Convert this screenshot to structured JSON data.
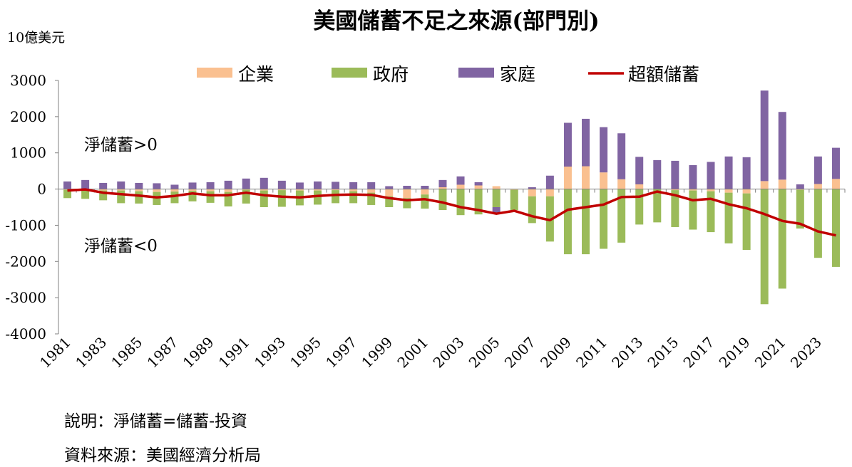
{
  "chart_data": {
    "type": "bar",
    "title": "美國儲蓄不足之來源(部門別)",
    "ylabel": "10億美元",
    "xlabel": "",
    "ylim": [
      -4000,
      3000
    ],
    "yticks": [
      3000,
      2000,
      1000,
      0,
      -1000,
      -2000,
      -3000,
      -4000
    ],
    "xtick_labels": [
      "1981",
      "1983",
      "1985",
      "1987",
      "1989",
      "1991",
      "1993",
      "1995",
      "1997",
      "1999",
      "2001",
      "2003",
      "2005",
      "2007",
      "2009",
      "2011",
      "2013",
      "2015",
      "2017",
      "2019",
      "2021",
      "2023"
    ],
    "categories": [
      "1981",
      "1982",
      "1983",
      "1984",
      "1985",
      "1986",
      "1987",
      "1988",
      "1989",
      "1990",
      "1991",
      "1992",
      "1993",
      "1994",
      "1995",
      "1996",
      "1997",
      "1998",
      "1999",
      "2000",
      "2001",
      "2002",
      "2003",
      "2004",
      "2005",
      "2006",
      "2007",
      "2008",
      "2009",
      "2010",
      "2011",
      "2012",
      "2013",
      "2014",
      "2015",
      "2016",
      "2017",
      "2018",
      "2019",
      "2020",
      "2021",
      "2022",
      "2023",
      "2024"
    ],
    "legend_position": "top",
    "series": [
      {
        "name": "企業",
        "kind": "bar",
        "color": "#FAC090",
        "values": [
          -20,
          -30,
          -40,
          -40,
          -60,
          -80,
          -70,
          -50,
          -60,
          -80,
          -20,
          -40,
          -30,
          -40,
          -40,
          -30,
          -60,
          -100,
          -200,
          -250,
          -150,
          50,
          120,
          100,
          80,
          -20,
          -200,
          -200,
          620,
          630,
          460,
          270,
          130,
          0,
          -30,
          -40,
          -60,
          -100,
          -120,
          220,
          260,
          -20,
          140,
          280
        ]
      },
      {
        "name": "政府",
        "kind": "bar",
        "color": "#9BBB59",
        "values": [
          -230,
          -240,
          -270,
          -350,
          -340,
          -360,
          -320,
          -290,
          -320,
          -400,
          -380,
          -460,
          -460,
          -410,
          -390,
          -360,
          -330,
          -340,
          -300,
          -280,
          -390,
          -580,
          -720,
          -700,
          -500,
          -560,
          -740,
          -1250,
          -1800,
          -1800,
          -1650,
          -1480,
          -980,
          -920,
          -1020,
          -1080,
          -1130,
          -1400,
          -1560,
          -3180,
          -2750,
          -1070,
          -1900,
          -2150
        ]
      },
      {
        "name": "家庭",
        "kind": "bar",
        "color": "#8064A2",
        "values": [
          210,
          250,
          170,
          210,
          170,
          160,
          120,
          180,
          190,
          230,
          290,
          310,
          230,
          180,
          210,
          200,
          190,
          190,
          80,
          90,
          90,
          200,
          230,
          90,
          -160,
          0,
          50,
          370,
          1210,
          1310,
          1250,
          1270,
          760,
          800,
          780,
          660,
          750,
          900,
          880,
          2500,
          1870,
          130,
          760,
          860
        ]
      },
      {
        "name": "超額儲蓄",
        "kind": "line",
        "color": "#C00000",
        "values": [
          -40,
          -10,
          -100,
          -140,
          -180,
          -230,
          -190,
          -120,
          -170,
          -170,
          -100,
          -170,
          -210,
          -230,
          -190,
          -160,
          -150,
          -160,
          -250,
          -310,
          -280,
          -370,
          -500,
          -580,
          -680,
          -600,
          -750,
          -860,
          -570,
          -500,
          -430,
          -220,
          -210,
          -70,
          -170,
          -310,
          -270,
          -420,
          -530,
          -690,
          -880,
          -960,
          -1170,
          -1280
        ]
      }
    ],
    "annotations": [
      "淨儲蓄>0",
      "淨儲蓄<0"
    ]
  },
  "notes": {
    "line1": "說明：淨儲蓄=儲蓄-投資",
    "line2": "資料來源：美國經濟分析局"
  }
}
